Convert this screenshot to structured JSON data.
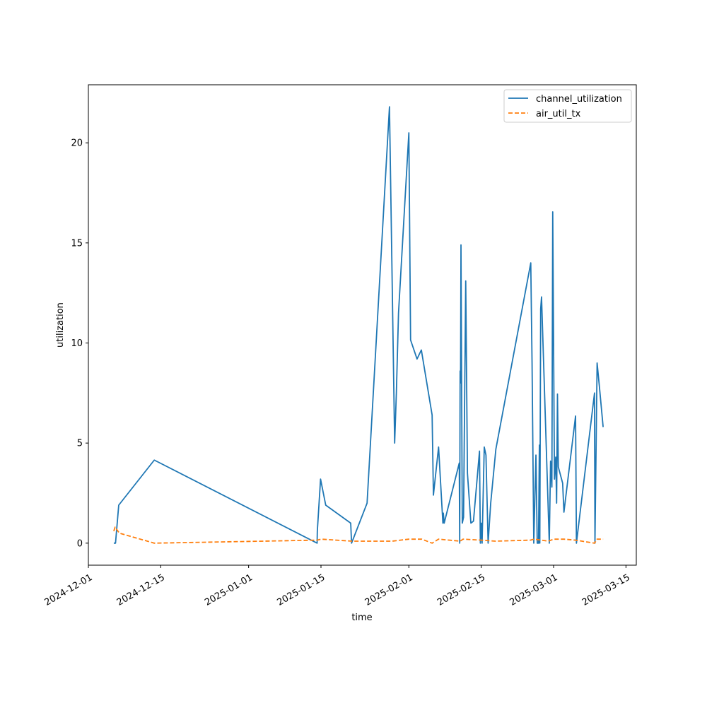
{
  "chart_data": {
    "type": "line",
    "title": "",
    "xlabel": "time",
    "ylabel": "utilization",
    "x_scale": "date",
    "xlim": [
      "2024-12-01",
      "2025-03-17"
    ],
    "ylim": [
      -1.1,
      22.9
    ],
    "x_ticks": [
      "2024-12-01",
      "2024-12-15",
      "2025-01-01",
      "2025-01-15",
      "2025-02-01",
      "2025-02-15",
      "2025-03-01",
      "2025-03-15"
    ],
    "y_ticks": [
      0,
      5,
      10,
      15,
      20
    ],
    "grid": false,
    "legend_position": "top-right",
    "series": [
      {
        "name": "channel_utilization",
        "color": "#1f77b4",
        "style": "solid",
        "points": [
          [
            "2024-12-05T22:00",
            0.0
          ],
          [
            "2024-12-06T06:00",
            0.0
          ],
          [
            "2024-12-06T21:00",
            1.9
          ],
          [
            "2024-12-13T18:00",
            4.15
          ],
          [
            "2025-01-14T06:00",
            0.0
          ],
          [
            "2025-01-14T07:00",
            0.6
          ],
          [
            "2025-01-14T22:00",
            3.2
          ],
          [
            "2025-01-15T22:00",
            1.9
          ],
          [
            "2025-01-20T18:00",
            1.0
          ],
          [
            "2025-01-20T22:00",
            0.0
          ],
          [
            "2025-01-23T22:00",
            2.0
          ],
          [
            "2025-01-28T06:00",
            21.8
          ],
          [
            "2025-01-29T06:00",
            5.0
          ],
          [
            "2025-01-29T14:00",
            7.5
          ],
          [
            "2025-01-30T00:00",
            11.5
          ],
          [
            "2025-02-01T00:00",
            20.5
          ],
          [
            "2025-02-01T08:00",
            10.15
          ],
          [
            "2025-02-02T14:00",
            9.2
          ],
          [
            "2025-02-03T10:00",
            9.65
          ],
          [
            "2025-02-05T12:00",
            6.4
          ],
          [
            "2025-02-05T18:00",
            2.4
          ],
          [
            "2025-02-06T18:00",
            4.8
          ],
          [
            "2025-02-07T14:00",
            1.0
          ],
          [
            "2025-02-07T16:00",
            1.5
          ],
          [
            "2025-02-07T20:00",
            1.0
          ],
          [
            "2025-02-10T18:00",
            4.0
          ],
          [
            "2025-02-10T20:00",
            0.0
          ],
          [
            "2025-02-10T22:00",
            8.6
          ],
          [
            "2025-02-11T00:00",
            8.0
          ],
          [
            "2025-02-11T02:00",
            14.9
          ],
          [
            "2025-02-11T08:00",
            1.0
          ],
          [
            "2025-02-11T14:00",
            1.3
          ],
          [
            "2025-02-12T00:00",
            13.1
          ],
          [
            "2025-02-12T08:00",
            3.5
          ],
          [
            "2025-02-13T00:00",
            1.0
          ],
          [
            "2025-02-13T12:00",
            1.1
          ],
          [
            "2025-02-14T16:00",
            4.6
          ],
          [
            "2025-02-14T20:00",
            0.0
          ],
          [
            "2025-02-15T00:00",
            1.0
          ],
          [
            "2025-02-15T04:00",
            0.0
          ],
          [
            "2025-02-15T14:00",
            4.8
          ],
          [
            "2025-02-15T22:00",
            4.4
          ],
          [
            "2025-02-16T08:00",
            0.0
          ],
          [
            "2025-02-16T20:00",
            2.0
          ],
          [
            "2025-02-17T20:00",
            4.7
          ],
          [
            "2025-02-24T14:00",
            14.0
          ],
          [
            "2025-02-24T20:00",
            9.0
          ],
          [
            "2025-02-25T04:00",
            0.0
          ],
          [
            "2025-02-25T14:00",
            4.4
          ],
          [
            "2025-02-25T20:00",
            0.0
          ],
          [
            "2025-02-26T02:00",
            0.0
          ],
          [
            "2025-02-26T06:00",
            4.9
          ],
          [
            "2025-02-26T08:00",
            0.0
          ],
          [
            "2025-02-26T12:00",
            11.7
          ],
          [
            "2025-02-26T16:00",
            12.3
          ],
          [
            "2025-02-28T04:00",
            0.0
          ],
          [
            "2025-02-28T10:00",
            4.1
          ],
          [
            "2025-02-28T16:00",
            2.8
          ],
          [
            "2025-02-28T20:00",
            16.55
          ],
          [
            "2025-03-01T04:00",
            3.2
          ],
          [
            "2025-03-01T10:00",
            4.3
          ],
          [
            "2025-03-01T14:00",
            2.0
          ],
          [
            "2025-03-01T18:00",
            7.45
          ],
          [
            "2025-03-01T22:00",
            3.8
          ],
          [
            "2025-03-02T18:00",
            3.0
          ],
          [
            "2025-03-03T00:00",
            1.55
          ],
          [
            "2025-03-05T06:00",
            6.35
          ],
          [
            "2025-03-05T10:00",
            0.0
          ],
          [
            "2025-03-08T22:00",
            7.5
          ],
          [
            "2025-03-09T00:00",
            0.0
          ],
          [
            "2025-03-09T10:00",
            9.0
          ],
          [
            "2025-03-09T20:00",
            7.9
          ],
          [
            "2025-03-10T14:00",
            5.8
          ]
        ]
      },
      {
        "name": "air_util_tx",
        "color": "#ff7f0e",
        "style": "dashed",
        "points": [
          [
            "2024-12-05T22:00",
            0.6
          ],
          [
            "2024-12-06T04:00",
            0.8
          ],
          [
            "2024-12-07T00:00",
            0.5
          ],
          [
            "2024-12-13T18:00",
            0.0
          ],
          [
            "2025-01-14T06:00",
            0.15
          ],
          [
            "2025-01-15T00:00",
            0.2
          ],
          [
            "2025-01-21T00:00",
            0.1
          ],
          [
            "2025-01-28T18:00",
            0.1
          ],
          [
            "2025-02-01T00:00",
            0.2
          ],
          [
            "2025-02-03T12:00",
            0.2
          ],
          [
            "2025-02-05T12:00",
            0.0
          ],
          [
            "2025-02-06T18:00",
            0.2
          ],
          [
            "2025-02-10T22:00",
            0.1
          ],
          [
            "2025-02-11T12:00",
            0.2
          ],
          [
            "2025-02-15T00:00",
            0.15
          ],
          [
            "2025-02-17T18:00",
            0.1
          ],
          [
            "2025-02-24T12:00",
            0.15
          ],
          [
            "2025-02-25T06:00",
            0.2
          ],
          [
            "2025-02-28T00:00",
            0.1
          ],
          [
            "2025-03-01T00:00",
            0.2
          ],
          [
            "2025-03-03T00:00",
            0.2
          ],
          [
            "2025-03-05T06:00",
            0.15
          ],
          [
            "2025-03-08T22:00",
            0.0
          ],
          [
            "2025-03-09T10:00",
            0.2
          ],
          [
            "2025-03-10T14:00",
            0.2
          ]
        ]
      }
    ]
  }
}
